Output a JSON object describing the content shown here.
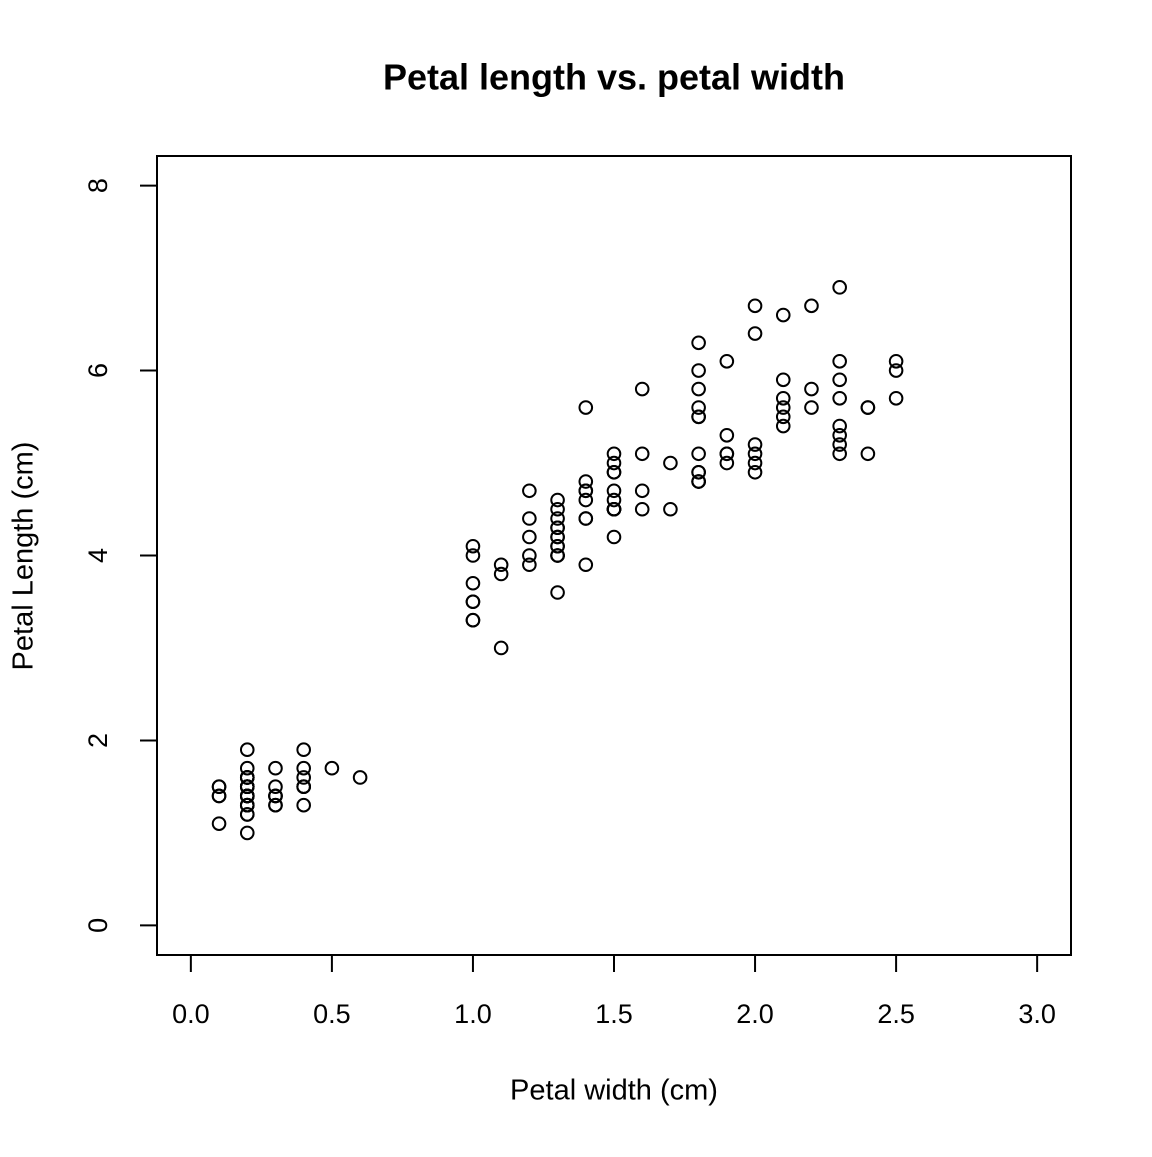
{
  "chart_data": {
    "type": "scatter",
    "title": "Petal length vs. petal width",
    "x_label": "Petal width (cm)",
    "y_label": "Petal Length (cm)",
    "color": "#000000",
    "xlim": [
      -0.12,
      3.12
    ],
    "ylim": [
      -0.32,
      8.32
    ],
    "xticks": [
      {
        "value": 0,
        "label": "0.0"
      },
      0.5,
      {
        "value": 1,
        "label": "1.0"
      },
      1.5,
      {
        "value": 2,
        "label": "2.0"
      },
      2.5,
      {
        "value": 3,
        "label": "3.0"
      }
    ],
    "yticks": [
      0,
      2,
      4,
      6,
      8
    ],
    "x": [
      0.2,
      0.2,
      0.2,
      0.2,
      0.2,
      0.4,
      0.3,
      0.2,
      0.2,
      0.1,
      0.2,
      0.2,
      0.1,
      0.1,
      0.2,
      0.4,
      0.4,
      0.3,
      0.3,
      0.3,
      0.2,
      0.4,
      0.2,
      0.5,
      0.2,
      0.2,
      0.4,
      0.2,
      0.2,
      0.2,
      0.2,
      0.4,
      0.1,
      0.2,
      0.2,
      0.2,
      0.2,
      0.1,
      0.2,
      0.2,
      0.3,
      0.3,
      0.2,
      0.6,
      0.4,
      0.3,
      0.2,
      0.2,
      0.2,
      0.2,
      1.4,
      1.5,
      1.5,
      1.3,
      1.5,
      1.3,
      1.6,
      1.0,
      1.3,
      1.4,
      1.0,
      1.5,
      1.0,
      1.4,
      1.3,
      1.4,
      1.5,
      1.0,
      1.5,
      1.1,
      1.8,
      1.3,
      1.5,
      1.2,
      1.3,
      1.4,
      1.4,
      1.7,
      1.5,
      1.0,
      1.1,
      1.0,
      1.2,
      1.6,
      1.5,
      1.6,
      1.5,
      1.3,
      1.3,
      1.3,
      1.2,
      1.4,
      1.2,
      1.0,
      1.3,
      1.2,
      1.3,
      1.3,
      1.1,
      1.3,
      2.5,
      1.9,
      2.1,
      1.8,
      2.2,
      2.1,
      1.7,
      1.8,
      1.8,
      2.5,
      2.0,
      1.9,
      2.1,
      2.0,
      2.4,
      2.3,
      1.8,
      2.2,
      2.3,
      1.5,
      2.3,
      2.0,
      2.0,
      1.8,
      2.1,
      1.8,
      1.8,
      1.8,
      2.1,
      1.6,
      1.9,
      2.0,
      2.2,
      1.5,
      1.4,
      2.3,
      2.4,
      1.8,
      1.8,
      2.1,
      2.4,
      2.3,
      1.9,
      2.3,
      2.5,
      2.3,
      1.9,
      2.0,
      2.3,
      1.8
    ],
    "values": [
      1.4,
      1.4,
      1.3,
      1.5,
      1.4,
      1.7,
      1.4,
      1.5,
      1.4,
      1.5,
      1.5,
      1.6,
      1.4,
      1.1,
      1.2,
      1.5,
      1.3,
      1.4,
      1.7,
      1.5,
      1.7,
      1.5,
      1.0,
      1.7,
      1.9,
      1.6,
      1.6,
      1.5,
      1.4,
      1.6,
      1.6,
      1.5,
      1.5,
      1.4,
      1.5,
      1.2,
      1.3,
      1.4,
      1.3,
      1.5,
      1.3,
      1.3,
      1.3,
      1.6,
      1.9,
      1.4,
      1.6,
      1.4,
      1.5,
      1.4,
      4.7,
      4.5,
      4.9,
      4.0,
      4.6,
      4.5,
      4.7,
      3.3,
      4.6,
      3.9,
      3.5,
      4.2,
      4.0,
      4.7,
      3.6,
      4.4,
      4.5,
      4.1,
      4.5,
      3.9,
      4.8,
      4.0,
      4.9,
      4.7,
      4.3,
      4.4,
      4.8,
      5.0,
      4.5,
      3.5,
      3.8,
      3.7,
      3.9,
      5.1,
      4.5,
      4.5,
      4.7,
      4.4,
      4.1,
      4.0,
      4.4,
      4.6,
      4.0,
      3.3,
      4.2,
      4.2,
      4.2,
      4.3,
      3.0,
      4.1,
      6.0,
      5.1,
      5.9,
      5.6,
      5.8,
      6.6,
      4.5,
      6.3,
      5.8,
      6.1,
      5.1,
      5.3,
      5.5,
      5.0,
      5.1,
      5.3,
      5.5,
      6.7,
      6.9,
      5.0,
      5.7,
      4.9,
      6.7,
      4.9,
      5.7,
      6.0,
      4.8,
      4.9,
      5.6,
      5.8,
      6.1,
      6.4,
      5.6,
      5.1,
      5.6,
      6.1,
      5.6,
      5.5,
      4.8,
      5.4,
      5.6,
      5.1,
      5.1,
      5.9,
      5.7,
      5.2,
      5.0,
      5.2,
      5.4,
      5.1
    ]
  }
}
